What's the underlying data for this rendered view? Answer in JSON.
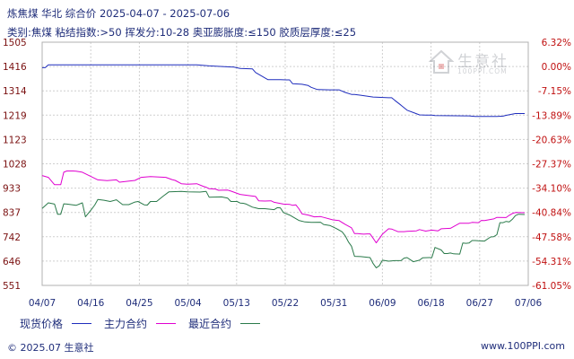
{
  "header": {
    "title": "炼焦煤  华北  综合价  2025-04-07 - 2025-07-06",
    "subtitle": "类别:焦煤  粘结指数:>50  挥发分:10-28  奥亚膨胀度:≤150  胶质层厚度:≤25"
  },
  "watermark": {
    "text": "生意社",
    "sub": "100PPI.COM"
  },
  "legend": {
    "items": [
      {
        "label": "现货价格",
        "color": "#1f2dbd"
      },
      {
        "label": "主力合约",
        "color": "#e000d0"
      },
      {
        "label": "最近合约",
        "color": "#2a7a4a"
      }
    ]
  },
  "footer": {
    "left": "© 2025.07 生意社",
    "right": "www.100PPI.com"
  },
  "colors": {
    "grid": "#cfcfcf",
    "axis_text_left": "#7a1010",
    "axis_text_right": "#c01010",
    "axis_text_x": "#1f2d7a"
  },
  "chart_data": {
    "type": "line",
    "title": "炼焦煤  华北  综合价  2025-04-07 - 2025-07-06",
    "subtitle": "类别:焦煤  粘结指数:>50  挥发分:10-28  奥亚膨胀度:≤150  胶质层厚度:≤25",
    "xlabel": "",
    "ylabel": "",
    "x_ticks": [
      "04/07",
      "04/16",
      "04/25",
      "05/04",
      "05/13",
      "05/22",
      "05/31",
      "06/09",
      "06/18",
      "06/27",
      "07/06"
    ],
    "ylim": [
      551,
      1505
    ],
    "y_ticks_left": [
      "1505",
      "1416",
      "1314",
      "1219",
      "1123",
      "1028",
      "933",
      "837",
      "742",
      "646",
      "551"
    ],
    "y_ticks_right": [
      "6.32%",
      "0.00%",
      "-7.15%",
      "-13.89%",
      "-20.63%",
      "-27.37%",
      "-34.10%",
      "-40.84%",
      "-47.58%",
      "-54.31%",
      "-61.05%"
    ],
    "grid": true,
    "legend_position": "bottom",
    "series": [
      {
        "name": "现货价格",
        "color": "#1f2dbd",
        "points": [
          [
            0,
            1405
          ],
          [
            1,
            1405
          ],
          [
            2,
            1416
          ],
          [
            30,
            1416
          ],
          [
            31,
            1416
          ],
          [
            40,
            1416
          ],
          [
            50,
            1416
          ],
          [
            54,
            1412
          ],
          [
            62,
            1407
          ],
          [
            64,
            1402
          ],
          [
            68,
            1400
          ],
          [
            69,
            1386
          ],
          [
            73,
            1358
          ],
          [
            77,
            1358
          ],
          [
            79,
            1357
          ],
          [
            80,
            1357
          ],
          [
            81,
            1342
          ],
          [
            84,
            1340
          ],
          [
            86,
            1335
          ],
          [
            87,
            1328
          ],
          [
            89,
            1319
          ],
          [
            93,
            1318
          ],
          [
            96,
            1318
          ],
          [
            98,
            1308
          ],
          [
            100,
            1300
          ],
          [
            101,
            1300
          ],
          [
            103,
            1297
          ],
          [
            107,
            1290
          ],
          [
            112,
            1287
          ],
          [
            113,
            1287
          ],
          [
            114,
            1277
          ],
          [
            116,
            1258
          ],
          [
            118,
            1238
          ],
          [
            120,
            1229
          ],
          [
            122,
            1220
          ],
          [
            124,
            1219
          ],
          [
            126,
            1219
          ],
          [
            127,
            1217
          ],
          [
            137,
            1216
          ],
          [
            138,
            1216
          ],
          [
            140,
            1214
          ],
          [
            147,
            1214
          ],
          [
            149,
            1215
          ],
          [
            150,
            1218
          ],
          [
            153,
            1225
          ],
          [
            156,
            1225
          ]
        ]
      },
      {
        "name": "主力合约",
        "color": "#e000d0",
        "points": [
          [
            0,
            982
          ],
          [
            2,
            975
          ],
          [
            4,
            946
          ],
          [
            6,
            946
          ],
          [
            7,
            995
          ],
          [
            8,
            1000
          ],
          [
            10,
            1000
          ],
          [
            11,
            999
          ],
          [
            13,
            995
          ],
          [
            15,
            983
          ],
          [
            18,
            965
          ],
          [
            21,
            962
          ],
          [
            24,
            965
          ],
          [
            25,
            956
          ],
          [
            30,
            963
          ],
          [
            32,
            975
          ],
          [
            35,
            978
          ],
          [
            40,
            975
          ],
          [
            42,
            966
          ],
          [
            43,
            963
          ],
          [
            45,
            950
          ],
          [
            47,
            948
          ],
          [
            50,
            950
          ],
          [
            52,
            940
          ],
          [
            53,
            936
          ],
          [
            54,
            930
          ],
          [
            56,
            929
          ],
          [
            57,
            924
          ],
          [
            60,
            925
          ],
          [
            61,
            921
          ],
          [
            64,
            908
          ],
          [
            67,
            903
          ],
          [
            69,
            900
          ],
          [
            70,
            883
          ],
          [
            72,
            882
          ],
          [
            74,
            883
          ],
          [
            75,
            877
          ],
          [
            78,
            870
          ],
          [
            80,
            869
          ],
          [
            81,
            865
          ],
          [
            82,
            867
          ],
          [
            83,
            852
          ],
          [
            84,
            832
          ],
          [
            86,
            827
          ],
          [
            88,
            820
          ],
          [
            90,
            821
          ],
          [
            91,
            818
          ],
          [
            94,
            808
          ],
          [
            96,
            805
          ],
          [
            98,
            790
          ],
          [
            100,
            777
          ],
          [
            101,
            754
          ],
          [
            102,
            754
          ],
          [
            103,
            753
          ],
          [
            104,
            752
          ],
          [
            105,
            753
          ],
          [
            106,
            753
          ],
          [
            107,
            736
          ],
          [
            108,
            718
          ],
          [
            110,
            752
          ],
          [
            112,
            773
          ],
          [
            113,
            772
          ],
          [
            115,
            762
          ],
          [
            117,
            762
          ],
          [
            118,
            763
          ],
          [
            121,
            765
          ],
          [
            122,
            770
          ],
          [
            124,
            764
          ],
          [
            126,
            768
          ],
          [
            128,
            765
          ],
          [
            129,
            773
          ],
          [
            132,
            775
          ],
          [
            135,
            795
          ],
          [
            138,
            795
          ],
          [
            139,
            798
          ],
          [
            141,
            797
          ],
          [
            142,
            806
          ],
          [
            143,
            805
          ],
          [
            146,
            812
          ],
          [
            147,
            818
          ],
          [
            150,
            817
          ],
          [
            151,
            826
          ],
          [
            152,
            833
          ],
          [
            153,
            837
          ],
          [
            156,
            836
          ]
        ]
      },
      {
        "name": "最近合约",
        "color": "#2a7a4a",
        "points": [
          [
            0,
            853
          ],
          [
            2,
            875
          ],
          [
            4,
            870
          ],
          [
            5,
            830
          ],
          [
            6,
            830
          ],
          [
            7,
            871
          ],
          [
            8,
            870
          ],
          [
            11,
            865
          ],
          [
            13,
            875
          ],
          [
            14,
            820
          ],
          [
            16,
            850
          ],
          [
            17,
            866
          ],
          [
            18,
            888
          ],
          [
            20,
            885
          ],
          [
            22,
            880
          ],
          [
            24,
            887
          ],
          [
            26,
            868
          ],
          [
            28,
            868
          ],
          [
            30,
            878
          ],
          [
            31,
            880
          ],
          [
            33,
            867
          ],
          [
            34,
            866
          ],
          [
            35,
            880
          ],
          [
            37,
            880
          ],
          [
            39,
            900
          ],
          [
            41,
            918
          ],
          [
            43,
            919
          ],
          [
            45,
            920
          ],
          [
            47,
            918
          ],
          [
            51,
            917
          ],
          [
            53,
            920
          ],
          [
            54,
            897
          ],
          [
            58,
            898
          ],
          [
            60,
            893
          ],
          [
            61,
            880
          ],
          [
            63,
            880
          ],
          [
            64,
            874
          ],
          [
            65,
            873
          ],
          [
            66,
            870
          ],
          [
            68,
            858
          ],
          [
            69,
            855
          ],
          [
            70,
            852
          ],
          [
            72,
            852
          ],
          [
            75,
            848
          ],
          [
            76,
            856
          ],
          [
            77,
            855
          ],
          [
            78,
            837
          ],
          [
            80,
            827
          ],
          [
            83,
            806
          ],
          [
            85,
            800
          ],
          [
            87,
            798
          ],
          [
            90,
            799
          ],
          [
            91,
            790
          ],
          [
            93,
            786
          ],
          [
            95,
            775
          ],
          [
            97,
            761
          ],
          [
            98,
            745
          ],
          [
            99,
            722
          ],
          [
            100,
            705
          ],
          [
            101,
            665
          ],
          [
            103,
            664
          ],
          [
            106,
            660
          ],
          [
            107,
            637
          ],
          [
            108,
            620
          ],
          [
            109,
            628
          ],
          [
            110,
            650
          ],
          [
            112,
            646
          ],
          [
            114,
            648
          ],
          [
            116,
            648
          ],
          [
            117,
            658
          ],
          [
            118,
            660
          ],
          [
            119,
            652
          ],
          [
            120,
            644
          ],
          [
            122,
            650
          ],
          [
            123,
            659
          ],
          [
            125,
            660
          ],
          [
            126,
            660
          ],
          [
            127,
            700
          ],
          [
            129,
            690
          ],
          [
            130,
            676
          ],
          [
            131,
            676
          ],
          [
            132,
            678
          ],
          [
            133,
            675
          ],
          [
            135,
            674
          ],
          [
            136,
            717
          ],
          [
            137,
            716
          ],
          [
            138,
            717
          ],
          [
            139,
            727
          ],
          [
            140,
            727
          ],
          [
            141,
            726
          ],
          [
            143,
            725
          ],
          [
            145,
            741
          ],
          [
            146,
            742
          ],
          [
            147,
            750
          ],
          [
            148,
            797
          ],
          [
            149,
            797
          ],
          [
            150,
            802
          ],
          [
            151,
            800
          ],
          [
            152,
            810
          ],
          [
            153,
            825
          ],
          [
            154,
            830
          ],
          [
            156,
            829
          ]
        ]
      }
    ]
  }
}
